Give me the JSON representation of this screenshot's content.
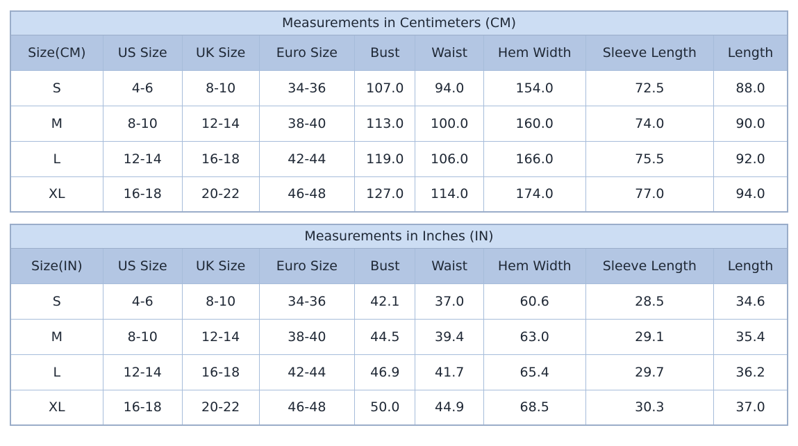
{
  "colors": {
    "title_bg": "#ccddf3",
    "header_bg": "#b3c6e3",
    "row_bg": "#ffffff",
    "inner_border": "#a6bcda",
    "outer_border": "#9aadc9",
    "text": "#1e2734"
  },
  "chart_data": [
    {
      "type": "table",
      "title": "Measurements in Centimeters (CM)",
      "columns": [
        "Size(CM)",
        "US Size",
        "UK Size",
        "Euro Size",
        "Bust",
        "Waist",
        "Hem Width",
        "Sleeve Length",
        "Length"
      ],
      "rows": [
        [
          "S",
          "4-6",
          "8-10",
          "34-36",
          "107.0",
          "94.0",
          "154.0",
          "72.5",
          "88.0"
        ],
        [
          "M",
          "8-10",
          "12-14",
          "38-40",
          "113.0",
          "100.0",
          "160.0",
          "74.0",
          "90.0"
        ],
        [
          "L",
          "12-14",
          "16-18",
          "42-44",
          "119.0",
          "106.0",
          "166.0",
          "75.5",
          "92.0"
        ],
        [
          "XL",
          "16-18",
          "20-22",
          "46-48",
          "127.0",
          "114.0",
          "174.0",
          "77.0",
          "94.0"
        ]
      ]
    },
    {
      "type": "table",
      "title": "Measurements in Inches (IN)",
      "columns": [
        "Size(IN)",
        "US Size",
        "UK Size",
        "Euro Size",
        "Bust",
        "Waist",
        "Hem Width",
        "Sleeve Length",
        "Length"
      ],
      "rows": [
        [
          "S",
          "4-6",
          "8-10",
          "34-36",
          "42.1",
          "37.0",
          "60.6",
          "28.5",
          "34.6"
        ],
        [
          "M",
          "8-10",
          "12-14",
          "38-40",
          "44.5",
          "39.4",
          "63.0",
          "29.1",
          "35.4"
        ],
        [
          "L",
          "12-14",
          "16-18",
          "42-44",
          "46.9",
          "41.7",
          "65.4",
          "29.7",
          "36.2"
        ],
        [
          "XL",
          "16-18",
          "20-22",
          "46-48",
          "50.0",
          "44.9",
          "68.5",
          "30.3",
          "37.0"
        ]
      ]
    }
  ]
}
